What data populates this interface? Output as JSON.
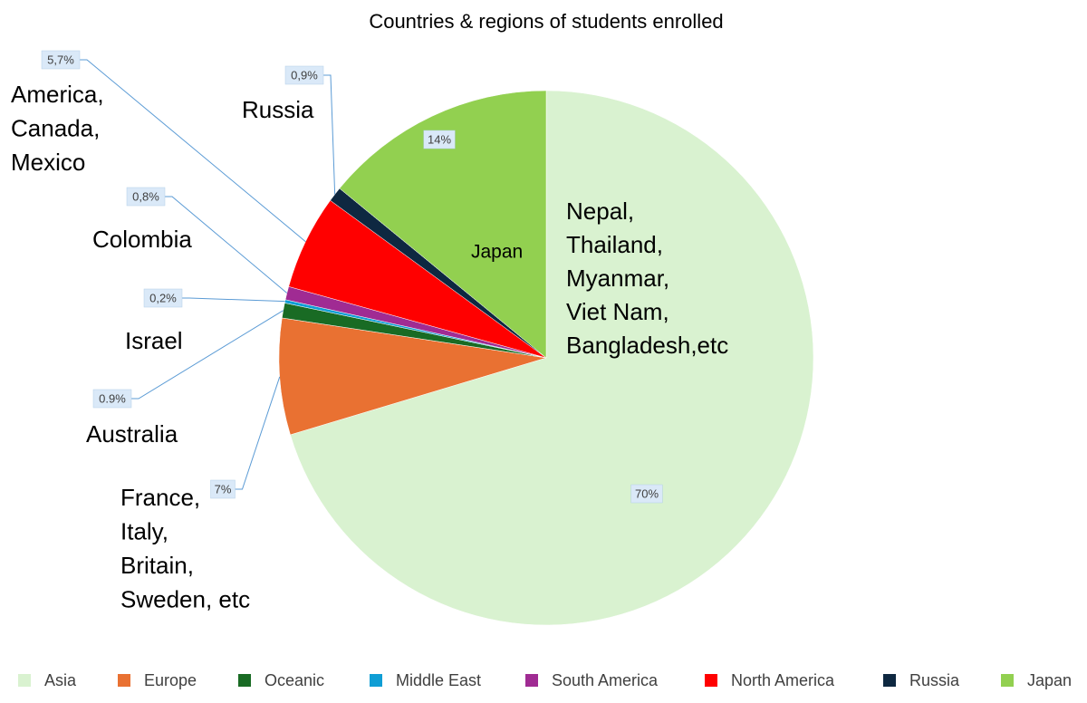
{
  "chart_data": {
    "type": "pie",
    "title": "Countries & regions of students enrolled",
    "categories": [
      "Asia",
      "Europe",
      "Oceanic",
      "Middle East",
      "South America",
      "North America",
      "Russia",
      "Japan"
    ],
    "values": [
      70,
      7,
      0.9,
      0.2,
      0.8,
      5.7,
      0.9,
      14
    ],
    "value_labels": [
      "70%",
      "7%",
      "0.9%",
      "0,2%",
      "0,8%",
      "5,7%",
      "0,9%",
      "14%"
    ],
    "colors": [
      "#d9f2d0",
      "#e97132",
      "#196b24",
      "#0f9ed5",
      "#a02b93",
      "#ff0000",
      "#0e2841",
      "#92d050"
    ],
    "region_labels": [
      [
        "Nepal,",
        "Thailand,",
        "Myanmar,",
        "Viet Nam,",
        "Bangladesh,etc"
      ],
      [
        "France,",
        "Italy,",
        "Britain,",
        "Sweden, etc"
      ],
      [
        "Australia"
      ],
      [
        "Israel"
      ],
      [
        "Colombia"
      ],
      [
        "America,",
        "Canada,",
        "Mexico"
      ],
      [
        "Russia"
      ],
      [
        "Japan"
      ]
    ],
    "legend": "bottom"
  }
}
